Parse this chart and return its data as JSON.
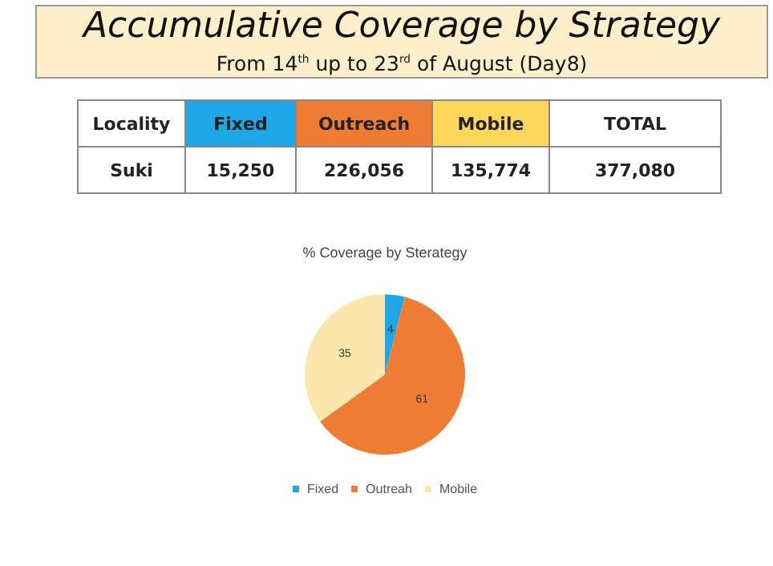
{
  "chart_data": [
    {
      "type": "other",
      "title": "Accumulative Coverage by Strategy",
      "subtitle": "From 14$^{th}$ up to 23$^{rd}$ of August (Day8)",
      "categories": [
        "Fixed",
        "Outreach",
        "Mobile"
      ],
      "values": [
        15250,
        226056,
        135774
      ],
      "value_labels": [
        "15,250",
        "226,056",
        "135,774"
      ],
      "colors": [
        "#1ea7e6",
        "#ee7d33",
        "#fcd75a"
      ],
      "totals": [
        "377,080"
      ],
      "annotations": [
        "Locality",
        "Suki",
        "TOTAL"
      ]
    },
    {
      "type": "pie",
      "title": "% Coverage by Sterategy",
      "categories": [
        "Fixed",
        "Outreah",
        "Mobile"
      ],
      "values": [
        4,
        61,
        35
      ],
      "colors": [
        "#1ea7e6",
        "#ee7d33",
        "#fbe7ac"
      ],
      "data_labels": true,
      "legend": "bottom"
    }
  ]
}
